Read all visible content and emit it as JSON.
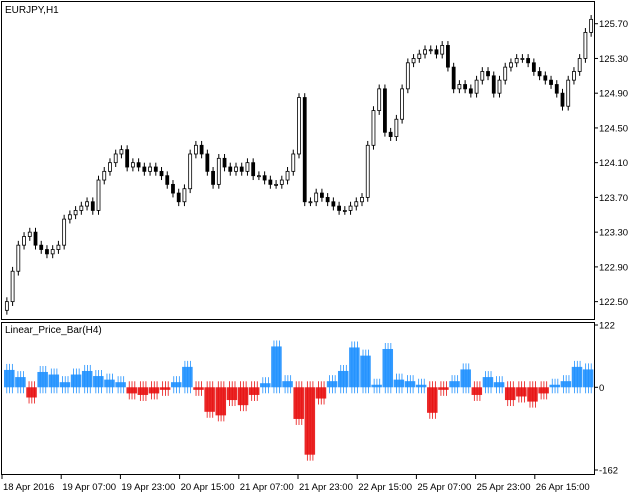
{
  "window": {
    "symbol_label": "EURJPY,H1",
    "indicator_label": "Linear_Price_Bar(H4)"
  },
  "colors": {
    "background": "#ffffff",
    "frame": "#000000",
    "candle": "#000000",
    "indicator_up": "#1e90ff",
    "indicator_down": "#e81010"
  },
  "price_axis": {
    "labels": [
      "125.70",
      "125.30",
      "124.90",
      "124.50",
      "124.10",
      "123.70",
      "123.30",
      "122.90",
      "122.50"
    ]
  },
  "indicator_axis": {
    "labels": [
      "122",
      "0",
      "-162"
    ]
  },
  "time_axis": {
    "labels": [
      "18 Apr 2016",
      "19 Apr 07:00",
      "19 Apr 23:00",
      "20 Apr 15:00",
      "21 Apr 07:00",
      "21 Apr 23:00",
      "22 Apr 15:00",
      "25 Apr 07:00",
      "25 Apr 23:00",
      "26 Apr 15:00"
    ]
  },
  "chart_data": [
    {
      "type": "candlestick",
      "title": "EURJPY,H1",
      "ylim": [
        122.3,
        125.95
      ],
      "y_ticks": [
        125.7,
        125.3,
        124.9,
        124.5,
        124.1,
        123.7,
        123.3,
        122.9,
        122.5
      ],
      "close": [
        122.5,
        122.85,
        123.15,
        123.25,
        123.3,
        123.15,
        123.1,
        123.05,
        123.1,
        123.15,
        123.45,
        123.5,
        123.55,
        123.6,
        123.65,
        123.55,
        123.9,
        124.0,
        124.1,
        124.2,
        124.25,
        124.05,
        124.1,
        124.05,
        124.0,
        124.05,
        124.0,
        123.95,
        123.85,
        123.75,
        123.65,
        123.8,
        124.2,
        124.3,
        124.2,
        124.0,
        123.85,
        124.15,
        124.05,
        124.0,
        124.05,
        124.0,
        124.1,
        123.95,
        123.95,
        123.9,
        123.85,
        123.85,
        123.9,
        124.0,
        124.2,
        124.85,
        123.65,
        123.65,
        123.75,
        123.7,
        123.65,
        123.6,
        123.55,
        123.55,
        123.6,
        123.65,
        123.7,
        124.3,
        124.7,
        124.95,
        124.45,
        124.4,
        124.6,
        124.95,
        125.25,
        125.3,
        125.35,
        125.4,
        125.4,
        125.35,
        125.45,
        125.2,
        124.95,
        125.0,
        124.95,
        124.9,
        125.05,
        125.15,
        125.1,
        124.9,
        125.05,
        125.2,
        125.25,
        125.3,
        125.3,
        125.25,
        125.15,
        125.1,
        125.05,
        125.0,
        124.9,
        124.75,
        125.05,
        125.15,
        125.3,
        125.6,
        125.75
      ]
    },
    {
      "type": "bar",
      "title": "Linear_Price_Bar(H4)",
      "ylim": [
        -162,
        122
      ],
      "y_ticks": [
        122,
        0,
        -162
      ],
      "series": [
        {
          "values": [
            34,
            20,
            -20,
            30,
            25,
            10,
            25,
            32,
            22,
            15,
            10,
            -12,
            -15,
            -12,
            -5,
            10,
            40,
            -5,
            -48,
            -55,
            -25,
            -35,
            -15,
            8,
            80,
            12,
            -62,
            -132,
            -22,
            12,
            32,
            78,
            62,
            5,
            75,
            15,
            12,
            5,
            -50,
            -5,
            12,
            35,
            -15,
            20,
            10,
            -25,
            -18,
            -28,
            -12,
            5,
            12,
            40,
            35
          ]
        }
      ]
    }
  ]
}
